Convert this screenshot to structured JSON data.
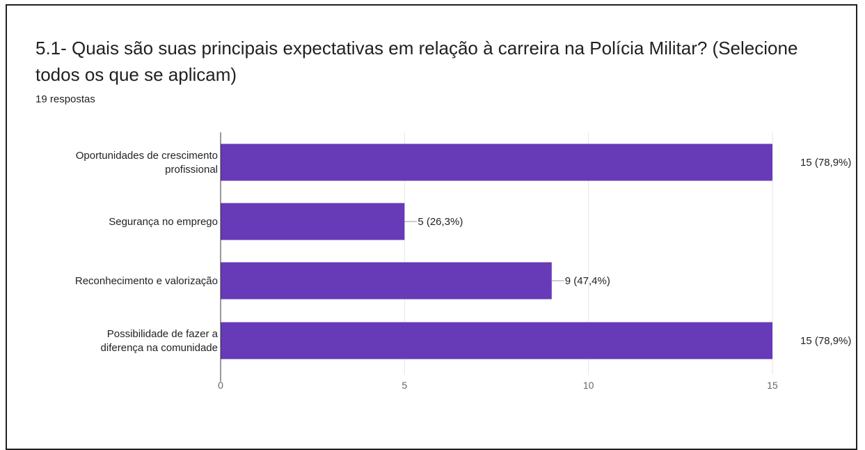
{
  "question": {
    "title": "5.1- Quais são suas principais expectativas em relação à carreira na Polícia Militar? (Selecione todos os que se aplicam)",
    "responses": "19 respostas"
  },
  "colors": {
    "bar": "#673ab7",
    "grid": "#e6e6e6",
    "axis": "#333333"
  },
  "chart_data": {
    "type": "bar",
    "orientation": "horizontal",
    "categories": [
      [
        "Oportunidades de crescimento",
        "profissional"
      ],
      [
        "Segurança no emprego"
      ],
      [
        "Reconhecimento e valorização"
      ],
      [
        "Possibilidade de fazer a",
        "diferença na comunidade"
      ]
    ],
    "values": [
      15,
      5,
      9,
      15
    ],
    "data_labels": [
      "15 (78,9%)",
      "5 (26,3%)",
      "9 (47,4%)",
      "15 (78,9%)"
    ],
    "xlim": [
      0,
      15
    ],
    "xticks": [
      0,
      5,
      10,
      15
    ],
    "grid": true
  }
}
